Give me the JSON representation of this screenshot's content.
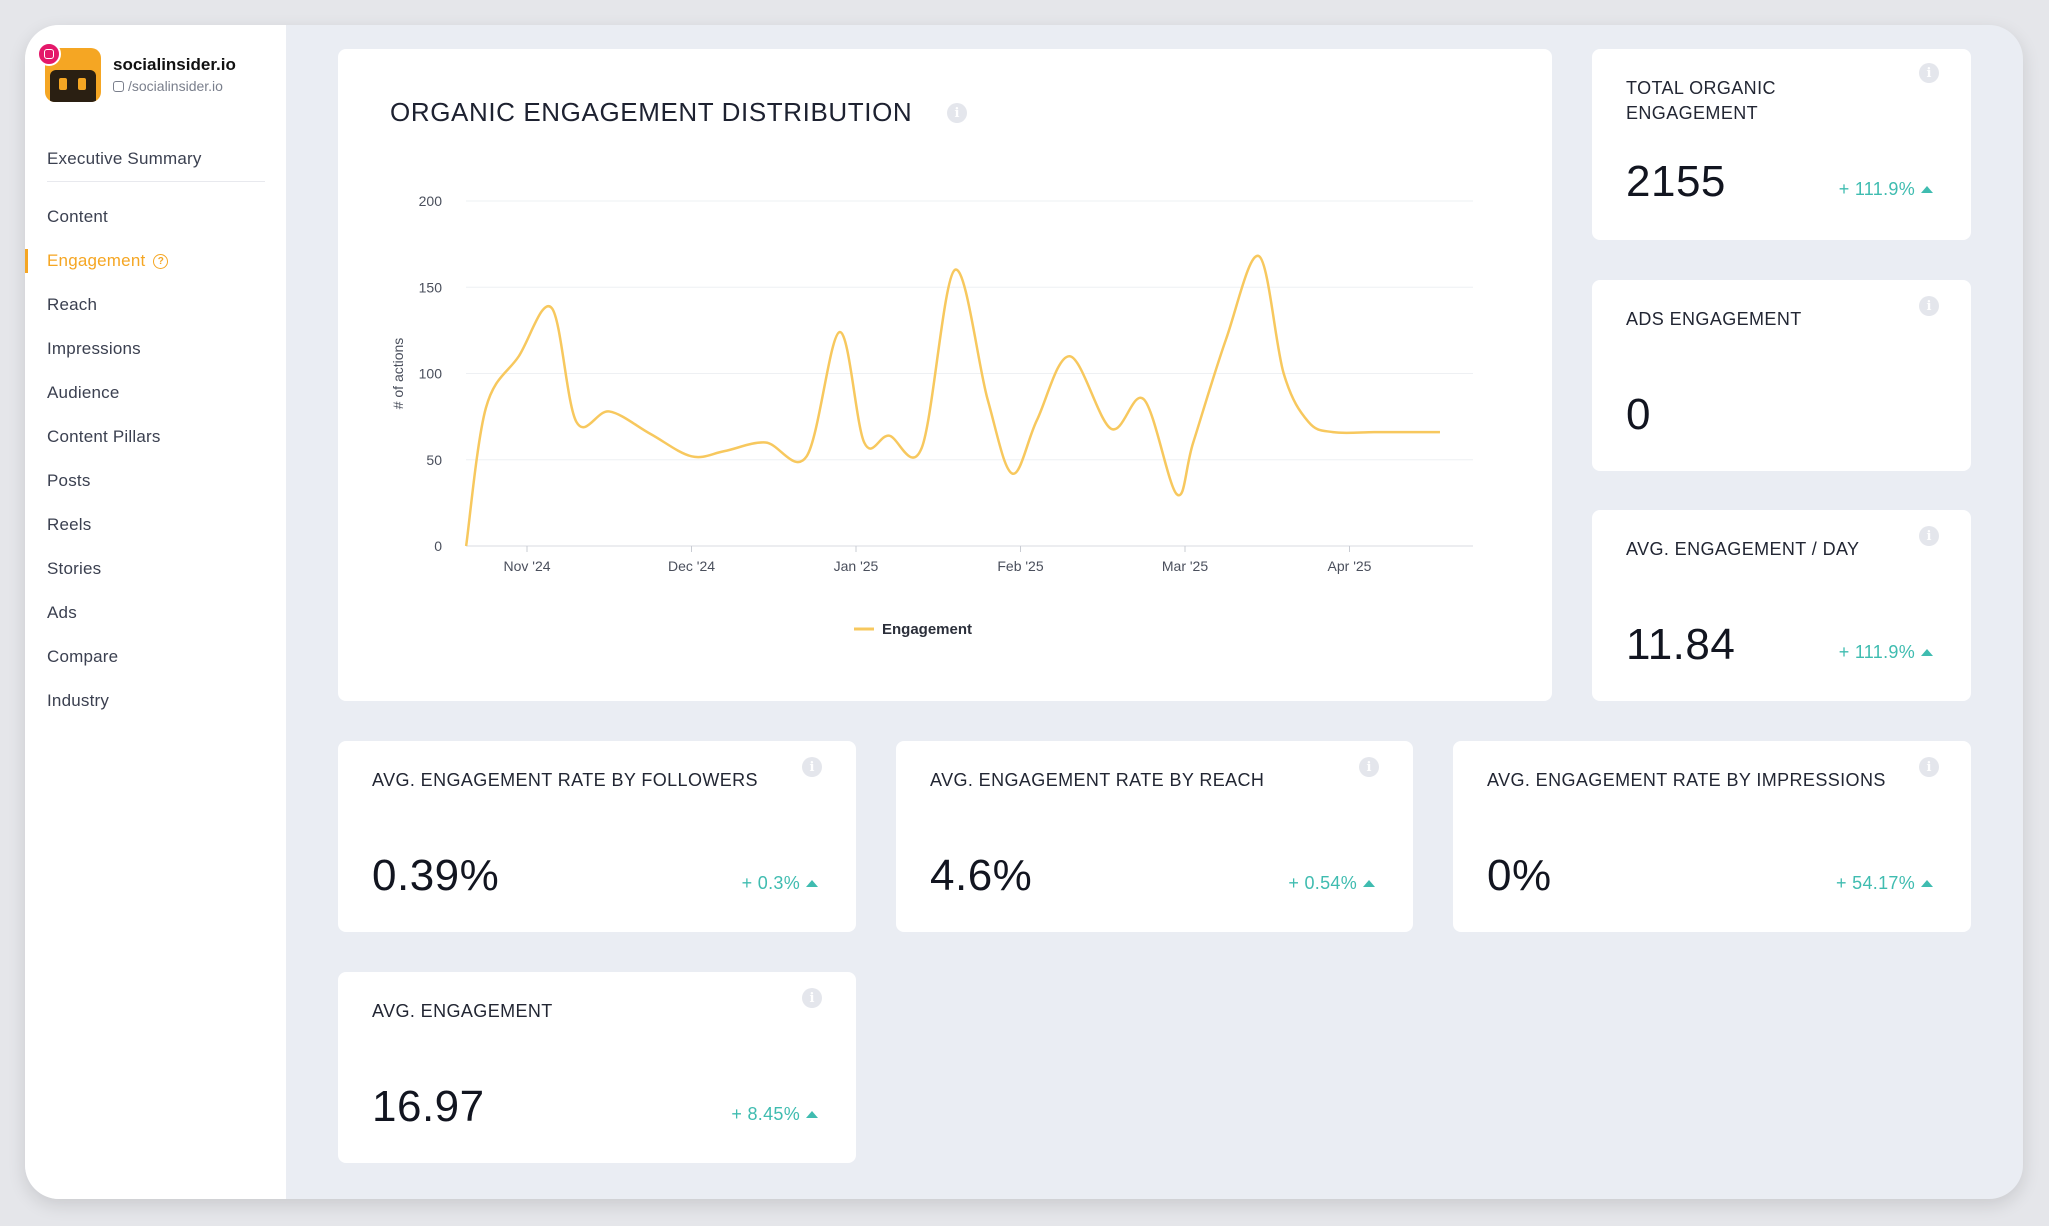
{
  "brand": {
    "name": "socialinsider.io",
    "handle": "/socialinsider.io"
  },
  "sidebar": {
    "items": [
      {
        "label": "Executive Summary"
      },
      {
        "label": "Content"
      },
      {
        "label": "Engagement"
      },
      {
        "label": "Reach"
      },
      {
        "label": "Impressions"
      },
      {
        "label": "Audience"
      },
      {
        "label": "Content Pillars"
      },
      {
        "label": "Posts"
      },
      {
        "label": "Reels"
      },
      {
        "label": "Stories"
      },
      {
        "label": "Ads"
      },
      {
        "label": "Compare"
      },
      {
        "label": "Industry"
      }
    ],
    "active": "Engagement"
  },
  "chart_card": {
    "title": "ORGANIC ENGAGEMENT DISTRIBUTION"
  },
  "chart_data": {
    "type": "line",
    "title": "ORGANIC ENGAGEMENT DISTRIBUTION",
    "xlabel": "",
    "ylabel": "# of actions",
    "ylim": [
      0,
      200
    ],
    "yticks": [
      "0",
      "50",
      "100",
      "150",
      "200"
    ],
    "xticks": [
      "Nov '24",
      "Dec '24",
      "Jan '25",
      "Feb '25",
      "Mar '25",
      "Apr '25"
    ],
    "legend": "bottom",
    "grid": true,
    "color": "#f7c85e",
    "series": [
      {
        "name": "Engagement",
        "x": [
          -0.37,
          -0.25,
          -0.05,
          0.15,
          0.3,
          0.5,
          0.75,
          1.0,
          1.2,
          1.45,
          1.7,
          1.9,
          2.05,
          2.2,
          2.4,
          2.6,
          2.8,
          2.95,
          3.1,
          3.3,
          3.55,
          3.75,
          3.95,
          4.05,
          4.25,
          4.45,
          4.6,
          4.75,
          4.9,
          5.15,
          5.35,
          5.55
        ],
        "y": [
          0,
          80,
          110,
          138,
          72,
          78,
          65,
          52,
          55,
          60,
          52,
          124,
          60,
          64,
          57,
          160,
          85,
          42,
          73,
          110,
          68,
          85,
          30,
          60,
          120,
          168,
          100,
          72,
          66,
          66,
          66,
          66
        ]
      }
    ]
  },
  "metrics": {
    "total_organic": {
      "title": "TOTAL ORGANIC ENGAGEMENT",
      "title_line1": "TOTAL ORGANIC",
      "title_line2": "ENGAGEMENT",
      "value": "2155",
      "change": "+ 111.9%"
    },
    "ads": {
      "title": "ADS ENGAGEMENT",
      "value": "0"
    },
    "avg_per_day": {
      "title": "AVG. ENGAGEMENT / DAY",
      "value": "11.84",
      "change": "+ 111.9%"
    },
    "rate_followers": {
      "title": "AVG. ENGAGEMENT RATE BY FOLLOWERS",
      "value": "0.39%",
      "change": "+ 0.3%"
    },
    "rate_reach": {
      "title": "AVG. ENGAGEMENT RATE BY REACH",
      "value": "4.6%",
      "change": "+ 0.54%"
    },
    "rate_impressions": {
      "title": "AVG. ENGAGEMENT RATE BY IMPRESSIONS",
      "value": "0%",
      "change": "+ 54.17%"
    },
    "avg_engagement": {
      "title": "AVG. ENGAGEMENT",
      "value": "16.97",
      "change": "+ 8.45%"
    }
  },
  "colors": {
    "accent": "#f5a623",
    "positive": "#3fbcb0",
    "line": "#f7c85e",
    "instagram": "#e4186a"
  }
}
